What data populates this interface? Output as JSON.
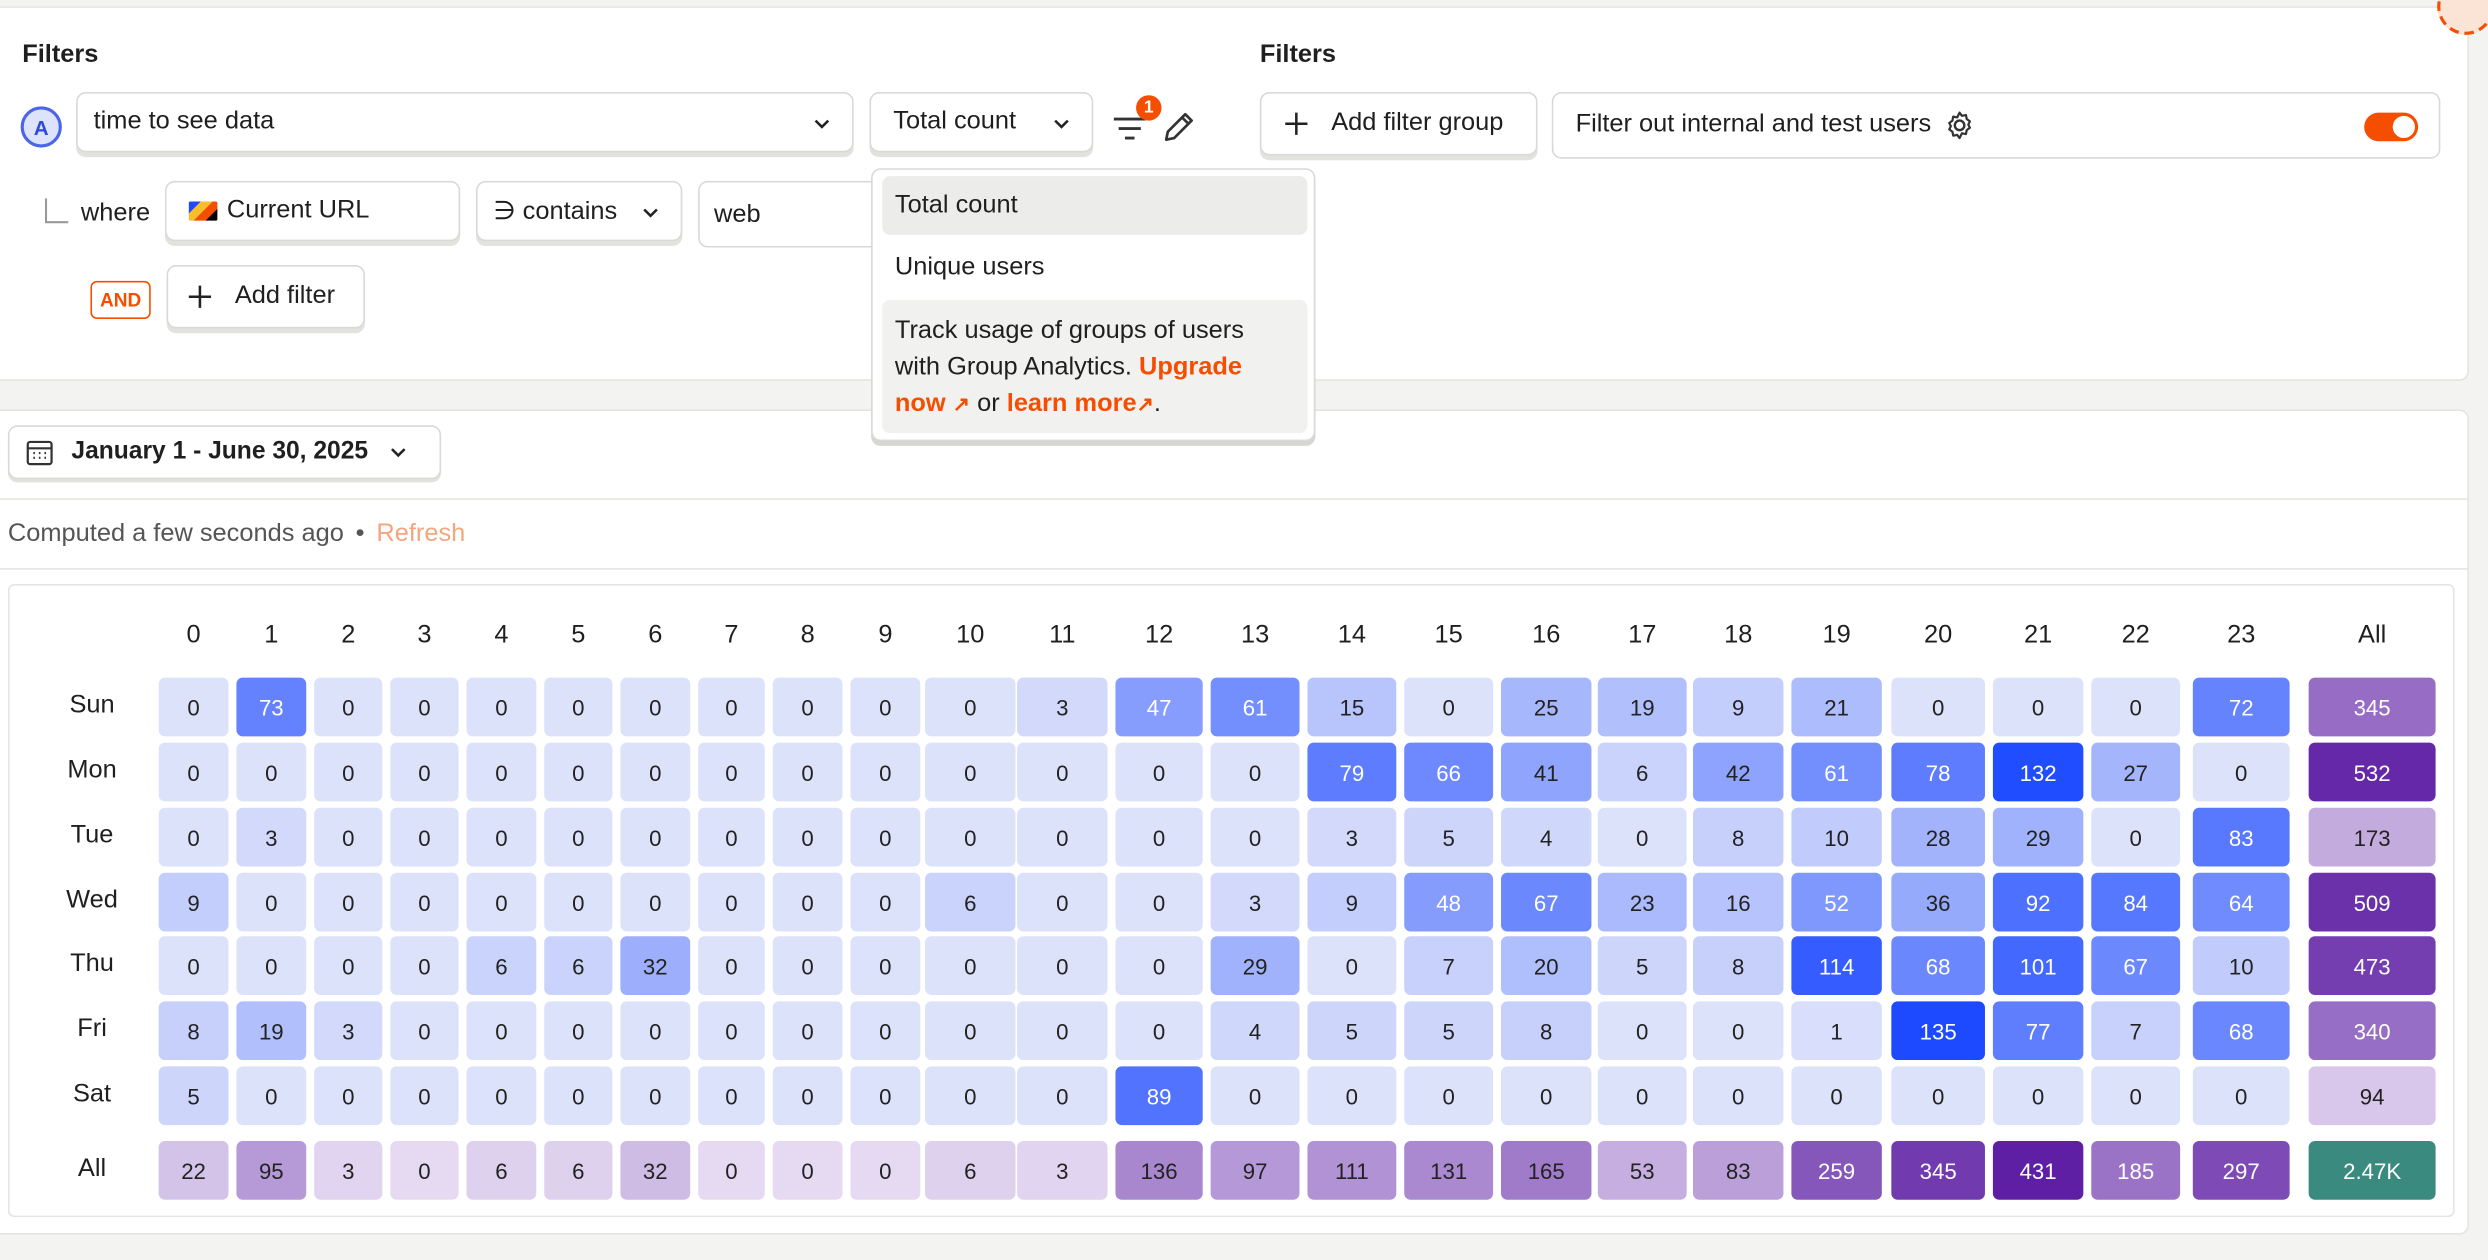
{
  "filters_left": {
    "heading": "Filters",
    "series_badge": "A",
    "event_value": "time to see data",
    "aggregation": "Total count",
    "filter_count_badge": "1",
    "where_label": "where",
    "property": "Current URL",
    "operator": "∋ contains",
    "property_value": "web",
    "and_badge": "AND",
    "add_filter": "Add filter"
  },
  "filters_right": {
    "heading": "Filters",
    "add_filter_group": "Add filter group",
    "internal_toggle_label": "Filter out internal and test users",
    "internal_toggle_on": true
  },
  "dropdown": {
    "items": [
      "Total count",
      "Unique users"
    ],
    "promo_text": "Track usage of groups of users with Group Analytics.",
    "upgrade_link": "Upgrade now",
    "or_text": "or",
    "learn_more": "learn more",
    "period": "."
  },
  "date_range": "January 1 - June 30, 2025",
  "computed": {
    "text": "Computed a few seconds ago",
    "sep": "•",
    "refresh": "Refresh"
  },
  "colors": {
    "accent": "#f54e00",
    "blue_max": "#1d4aff",
    "purple_max": "#5e1fa4",
    "total": "#3b8a80"
  },
  "heatmap": {
    "hours": [
      "0",
      "1",
      "2",
      "3",
      "4",
      "5",
      "6",
      "7",
      "8",
      "9",
      "10",
      "11",
      "12",
      "13",
      "14",
      "15",
      "16",
      "17",
      "18",
      "19",
      "20",
      "21",
      "22",
      "23"
    ],
    "all_label": "All",
    "rows": [
      {
        "day": "Sun",
        "values": [
          0,
          73,
          0,
          0,
          0,
          0,
          0,
          0,
          0,
          0,
          0,
          3,
          47,
          61,
          15,
          0,
          25,
          19,
          9,
          21,
          0,
          0,
          0,
          72
        ],
        "total": "345"
      },
      {
        "day": "Mon",
        "values": [
          0,
          0,
          0,
          0,
          0,
          0,
          0,
          0,
          0,
          0,
          0,
          0,
          0,
          0,
          79,
          66,
          41,
          6,
          42,
          61,
          78,
          132,
          27,
          0
        ],
        "total": "532"
      },
      {
        "day": "Tue",
        "values": [
          0,
          3,
          0,
          0,
          0,
          0,
          0,
          0,
          0,
          0,
          0,
          0,
          0,
          0,
          3,
          5,
          4,
          0,
          8,
          10,
          28,
          29,
          0,
          83
        ],
        "total": "173"
      },
      {
        "day": "Wed",
        "values": [
          9,
          0,
          0,
          0,
          0,
          0,
          0,
          0,
          0,
          0,
          6,
          0,
          0,
          3,
          9,
          48,
          67,
          23,
          16,
          52,
          36,
          92,
          84,
          64
        ],
        "total": "509"
      },
      {
        "day": "Thu",
        "values": [
          0,
          0,
          0,
          0,
          6,
          6,
          32,
          0,
          0,
          0,
          0,
          0,
          0,
          29,
          0,
          7,
          20,
          5,
          8,
          114,
          68,
          101,
          67,
          10
        ],
        "total": "473"
      },
      {
        "day": "Fri",
        "values": [
          8,
          19,
          3,
          0,
          0,
          0,
          0,
          0,
          0,
          0,
          0,
          0,
          0,
          4,
          5,
          5,
          8,
          0,
          0,
          1,
          135,
          77,
          7,
          68
        ],
        "total": "340"
      },
      {
        "day": "Sat",
        "values": [
          5,
          0,
          0,
          0,
          0,
          0,
          0,
          0,
          0,
          0,
          0,
          0,
          89,
          0,
          0,
          0,
          0,
          0,
          0,
          0,
          0,
          0,
          0,
          0
        ],
        "total": "94"
      }
    ],
    "all_row": [
      "22",
      "95",
      "3",
      "0",
      "6",
      "6",
      "32",
      "0",
      "0",
      "0",
      "6",
      "3",
      "136",
      "97",
      "111",
      "131",
      "165",
      "53",
      "83",
      "259",
      "345",
      "431",
      "185",
      "297"
    ],
    "grand_total": "2.47K"
  }
}
